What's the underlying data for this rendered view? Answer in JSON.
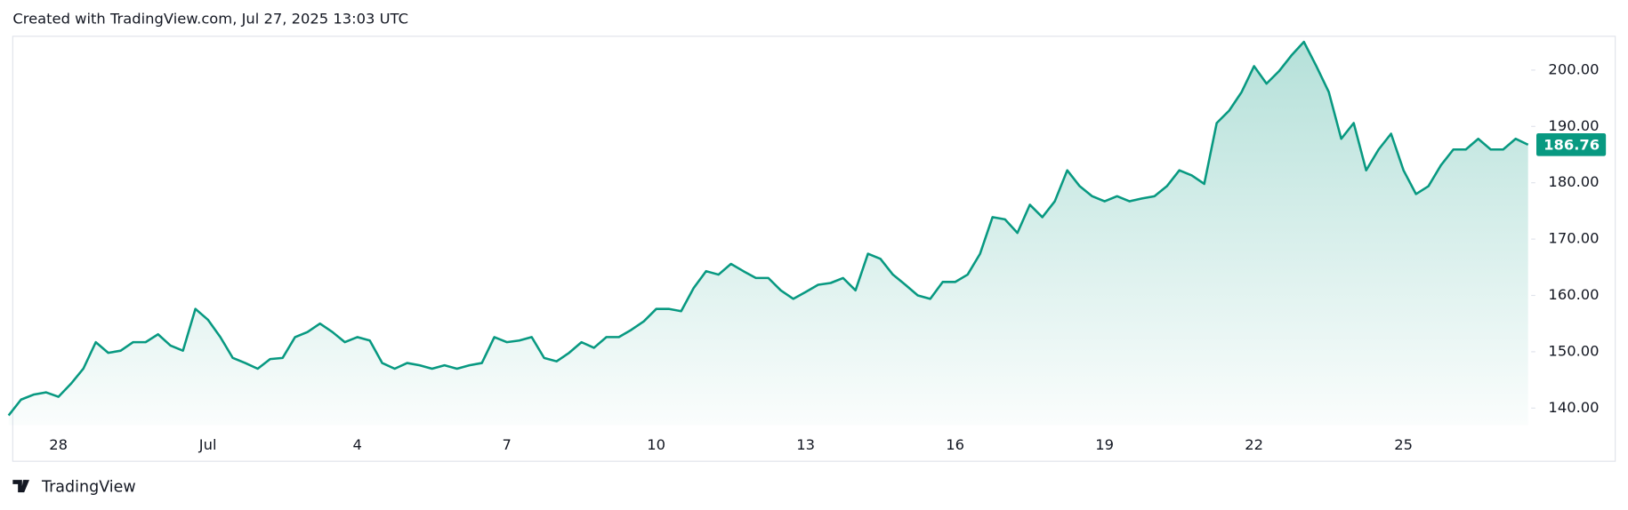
{
  "chart_data": {
    "type": "area",
    "title": "Created with TradingView.com, Jul 27, 2025 13:03 UTC",
    "source": "TradingView",
    "color": "#089981",
    "categories": [
      null,
      null,
      null,
      null,
      "28",
      null,
      null,
      null,
      null,
      null,
      null,
      null,
      null,
      null,
      null,
      null,
      "Jul",
      null,
      null,
      null,
      null,
      null,
      null,
      null,
      null,
      null,
      null,
      null,
      "4",
      null,
      null,
      null,
      null,
      null,
      null,
      null,
      null,
      null,
      null,
      null,
      "7",
      null,
      null,
      null,
      null,
      null,
      null,
      null,
      null,
      null,
      null,
      null,
      "10",
      null,
      null,
      null,
      null,
      null,
      null,
      null,
      null,
      null,
      null,
      null,
      "13",
      null,
      null,
      null,
      null,
      null,
      null,
      null,
      null,
      null,
      null,
      null,
      "16",
      null,
      null,
      null,
      null,
      null,
      null,
      null,
      null,
      null,
      null,
      null,
      "19",
      null,
      null,
      null,
      null,
      null,
      null,
      null,
      null,
      null,
      null,
      null,
      "22",
      null,
      null,
      null,
      null,
      null,
      null,
      null,
      null,
      null,
      null,
      null,
      "25",
      null,
      null,
      null,
      null,
      null,
      null,
      null,
      null,
      null,
      null
    ],
    "values": [
      138.7,
      141.5,
      142.4,
      142.8,
      142,
      144.3,
      147,
      151.7,
      149.8,
      150.2,
      151.7,
      151.7,
      153.1,
      151.1,
      150.2,
      157.6,
      155.7,
      152.6,
      148.9,
      148,
      147,
      148.7,
      148.9,
      152.6,
      153.5,
      155,
      153.5,
      151.7,
      152.6,
      152,
      148,
      147,
      148,
      147.6,
      147,
      147.6,
      147,
      147.6,
      148,
      152.6,
      151.7,
      152,
      152.6,
      148.9,
      148.3,
      149.8,
      151.7,
      150.7,
      152.6,
      152.6,
      153.9,
      155.4,
      157.6,
      157.6,
      157.2,
      161.3,
      164.3,
      163.7,
      165.6,
      164.3,
      163.1,
      163.1,
      160.9,
      159.4,
      160.6,
      161.9,
      162.2,
      163.1,
      160.9,
      167.4,
      166.5,
      163.7,
      161.9,
      160,
      159.4,
      162.4,
      162.4,
      163.7,
      167.4,
      173.9,
      173.5,
      171.1,
      176.1,
      173.9,
      176.7,
      182.2,
      179.4,
      177.6,
      176.7,
      177.6,
      176.7,
      177.2,
      177.6,
      179.4,
      182.2,
      181.3,
      179.8,
      190.6,
      192.8,
      196.1,
      200.7,
      197.6,
      199.8,
      202.6,
      205,
      200.7,
      196.1,
      187.8,
      190.6,
      182.2,
      185.9,
      188.7,
      182.2,
      178,
      179.4,
      183.1,
      185.9,
      185.9,
      187.8,
      185.9,
      185.9,
      187.8,
      186.76
    ],
    "ylim": [
      137,
      206
    ],
    "yticks": [
      {
        "value": 140,
        "label": "140.00"
      },
      {
        "value": 150,
        "label": "150.00"
      },
      {
        "value": 160,
        "label": "160.00"
      },
      {
        "value": 170,
        "label": "170.00"
      },
      {
        "value": 180,
        "label": "180.00"
      },
      {
        "value": 190,
        "label": "190.00"
      },
      {
        "value": 200,
        "label": "200.00"
      }
    ]
  }
}
